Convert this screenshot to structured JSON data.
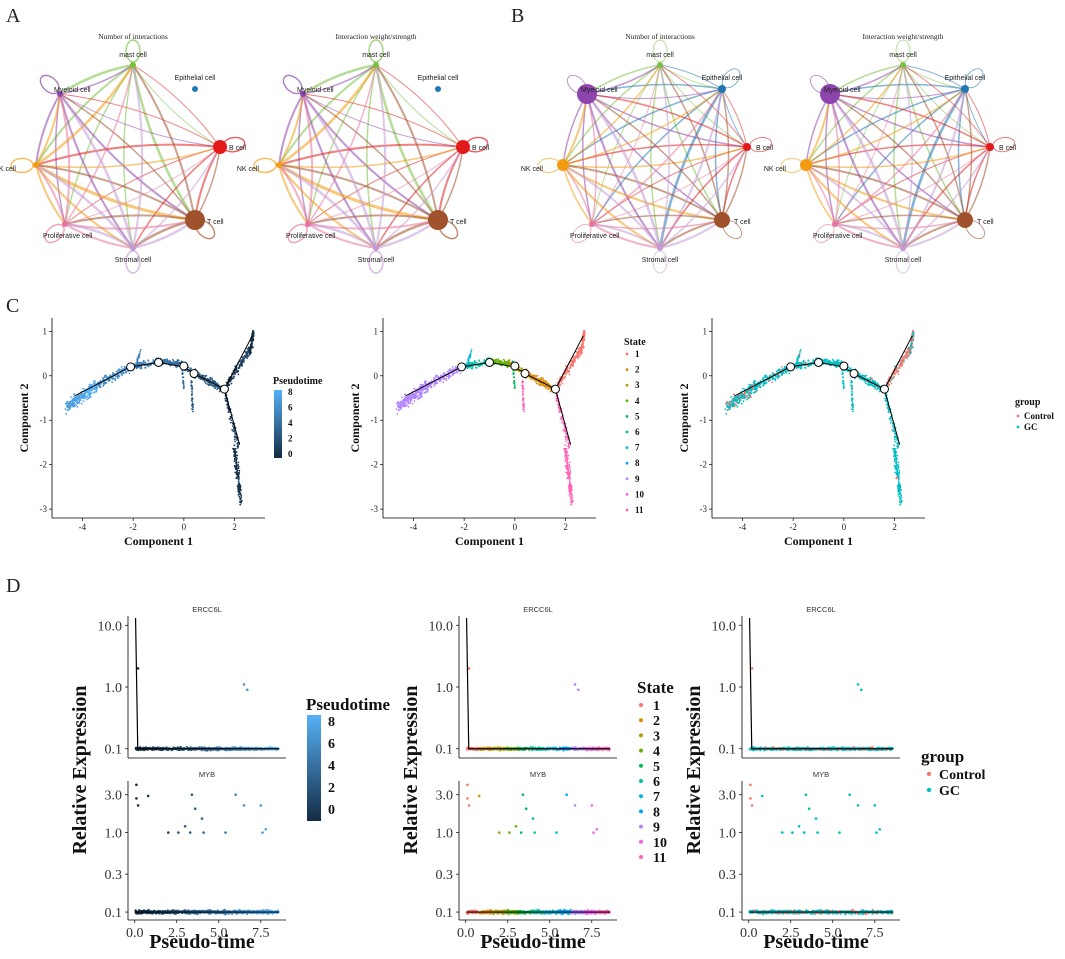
{
  "panel_letters": [
    "A",
    "B",
    "C",
    "D"
  ],
  "colors": {
    "cell_types": {
      "mast cell": "#7ac143",
      "Epithelial cell": "#1f78b4",
      "Myeloid cell": "#8e44ad",
      "B cell": "#e31a1c",
      "NK cell": "#f39c12",
      "T cell": "#a0522d",
      "Proliferative cell": "#e8739b",
      "Stromal cell": "#c39bd3"
    },
    "state_palette": [
      "#f8766d",
      "#db8e00",
      "#aea200",
      "#64b200",
      "#00bd5c",
      "#00c1a7",
      "#00bade",
      "#00a6ff",
      "#b385ff",
      "#ef67eb",
      "#ff63b6"
    ],
    "group": {
      "Control": "#f8766d",
      "GC": "#00bfc4"
    },
    "pseudotime_low": "#132b43",
    "pseudotime_high": "#56b1f7"
  },
  "panelA": {
    "networks": [
      {
        "title": "Number of interactions",
        "node_sizes": {
          "mast cell": 3,
          "Epithelial cell": 3,
          "Myeloid cell": 3,
          "B cell": 7,
          "NK cell": 3,
          "T cell": 10,
          "Proliferative cell": 3,
          "Stromal cell": 3
        }
      },
      {
        "title": "Interaction weight/strength",
        "node_sizes": {
          "mast cell": 3,
          "Epithelial cell": 3,
          "Myeloid cell": 3,
          "B cell": 7,
          "NK cell": 3,
          "T cell": 10,
          "Proliferative cell": 3,
          "Stromal cell": 3
        }
      }
    ]
  },
  "panelB": {
    "networks": [
      {
        "title": "Number of interactions",
        "node_sizes": {
          "mast cell": 3,
          "Epithelial cell": 4,
          "Myeloid cell": 10,
          "B cell": 4,
          "NK cell": 6,
          "T cell": 8,
          "Proliferative cell": 3,
          "Stromal cell": 3
        }
      },
      {
        "title": "Interaction weight/strength",
        "node_sizes": {
          "mast cell": 3,
          "Epithelial cell": 4,
          "Myeloid cell": 10,
          "B cell": 4,
          "NK cell": 6,
          "T cell": 8,
          "Proliferative cell": 3,
          "Stromal cell": 3
        }
      }
    ]
  },
  "chart_data": [
    {
      "type": "scatter",
      "panel": "C-1",
      "xlabel": "Component 1",
      "ylabel": "Component 2",
      "xlim": [
        -5.2,
        3.2
      ],
      "ylim": [
        -3.2,
        1.3
      ],
      "xticks": [
        -4,
        -2,
        0,
        2
      ],
      "yticks": [
        -3,
        -2,
        -1,
        0,
        1
      ],
      "color_by": "Pseudotime",
      "legend": {
        "title": "Pseudotime",
        "ticks": [
          8,
          6,
          4,
          2,
          0
        ]
      },
      "trajectory_branches": [
        {
          "name": "root",
          "x": [
            -4.3,
            -2.1,
            -1.0,
            0.0,
            0.4,
            1.6
          ],
          "y": [
            -0.45,
            0.2,
            0.3,
            0.2,
            0.05,
            -0.3
          ]
        },
        {
          "name": "upper",
          "x": [
            1.6,
            2.7
          ],
          "y": [
            -0.3,
            0.9
          ]
        },
        {
          "name": "lower",
          "x": [
            1.6,
            2.2
          ],
          "y": [
            -0.3,
            -1.55
          ]
        }
      ]
    },
    {
      "type": "scatter",
      "panel": "C-2",
      "xlabel": "Component 1",
      "ylabel": "Component 2",
      "xlim": [
        -5.2,
        3.2
      ],
      "ylim": [
        -3.2,
        1.3
      ],
      "xticks": [
        -4,
        -2,
        0,
        2
      ],
      "yticks": [
        -3,
        -2,
        -1,
        0,
        1
      ],
      "color_by": "State",
      "legend": {
        "title": "State",
        "items": [
          "1",
          "2",
          "3",
          "4",
          "5",
          "6",
          "7",
          "8",
          "9",
          "10",
          "11"
        ]
      }
    },
    {
      "type": "scatter",
      "panel": "C-3",
      "xlabel": "Component 1",
      "ylabel": "Component 2",
      "xlim": [
        -5.2,
        3.2
      ],
      "ylim": [
        -3.2,
        1.3
      ],
      "xticks": [
        -4,
        -2,
        0,
        2
      ],
      "yticks": [
        -3,
        -2,
        -1,
        0,
        1
      ],
      "color_by": "group",
      "legend": {
        "title": "group",
        "items": [
          "Control",
          "GC"
        ]
      }
    },
    {
      "type": "scatter",
      "panel": "D",
      "xlabel": "Pseudo-time",
      "ylabel": "Relative Expression",
      "y_scale": "log",
      "xlim": [
        -0.4,
        9.0
      ],
      "xticks": [
        "0.0",
        "2.5",
        "5.0",
        "7.5"
      ],
      "genes": [
        {
          "name": "ERCC6L",
          "yticks": [
            "10.0",
            "1.0",
            "0.1"
          ],
          "outliers": [
            [
              0.2,
              2.0
            ],
            [
              6.5,
              1.1
            ],
            [
              6.7,
              0.9
            ]
          ]
        },
        {
          "name": "MYB",
          "yticks": [
            "3.0",
            "1.0",
            "0.3",
            "0.1"
          ],
          "outliers": [
            [
              0.1,
              4.0
            ],
            [
              0.1,
              2.7
            ],
            [
              0.2,
              2.2
            ],
            [
              0.8,
              2.9
            ],
            [
              2.0,
              1.0
            ],
            [
              2.6,
              1.0
            ],
            [
              3.0,
              1.2
            ],
            [
              3.3,
              1.0
            ],
            [
              3.4,
              3.0
            ],
            [
              3.6,
              2.0
            ],
            [
              4.0,
              1.5
            ],
            [
              4.1,
              1.0
            ],
            [
              5.4,
              1.0
            ],
            [
              6.0,
              3.0
            ],
            [
              6.5,
              2.2
            ],
            [
              7.5,
              2.2
            ],
            [
              7.6,
              1.0
            ],
            [
              7.8,
              1.1
            ]
          ]
        }
      ],
      "color_variants": [
        {
          "by": "Pseudotime",
          "legend_title": "Pseudotime",
          "legend_ticks": [
            "8",
            "6",
            "4",
            "2",
            "0"
          ]
        },
        {
          "by": "State",
          "legend_title": "State",
          "legend_items": [
            "1",
            "2",
            "3",
            "4",
            "5",
            "6",
            "7",
            "8",
            "9",
            "10",
            "11"
          ]
        },
        {
          "by": "group",
          "legend_title": "group",
          "legend_items": [
            "Control",
            "GC"
          ]
        }
      ]
    }
  ]
}
